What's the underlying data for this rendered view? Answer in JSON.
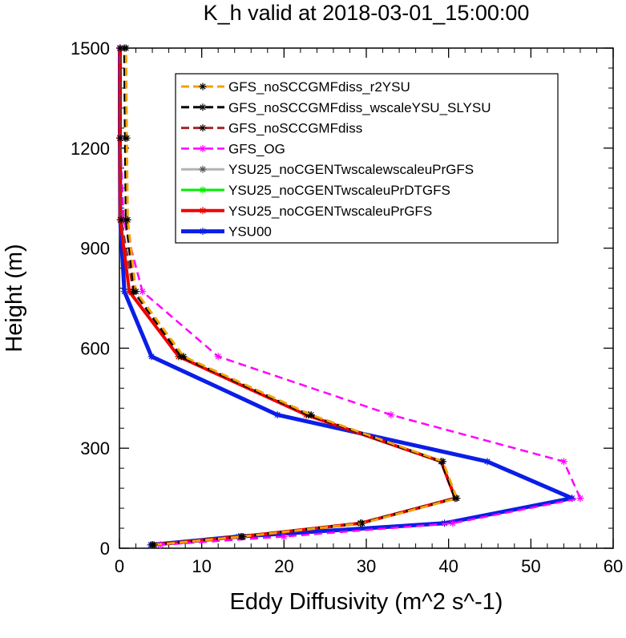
{
  "chart_data": {
    "type": "line",
    "title": "K_h valid at 2018-03-01_15:00:00",
    "xlabel": "Eddy Diffusivity (m^2 s^-1)",
    "ylabel": "Height (m)",
    "xlim": [
      0,
      60
    ],
    "ylim": [
      0,
      1500
    ],
    "x_ticks": [
      0,
      10,
      20,
      30,
      40,
      50,
      60
    ],
    "y_ticks": [
      0,
      300,
      600,
      900,
      1200,
      1500
    ],
    "x_tick_labels": [
      "0",
      "10",
      "20",
      "30",
      "40",
      "50",
      "60"
    ],
    "y_tick_labels": [
      "0",
      "300",
      "600",
      "900",
      "1200",
      "1500"
    ],
    "legend_position": "top-right",
    "grid": false,
    "heights": [
      10,
      35,
      75,
      150,
      260,
      400,
      575,
      770,
      985,
      1230,
      1500
    ],
    "series": [
      {
        "name": "GFS_noSCCGMFdiss_r2YSU",
        "color": "#f5a000",
        "width": 3,
        "dash": "10,6",
        "markers": true,
        "x": [
          4.2,
          15.0,
          29.5,
          41.0,
          39.3,
          23.3,
          7.8,
          2.0,
          1.0,
          0.9,
          0.8
        ]
      },
      {
        "name": "GFS_noSCCGMFdiss_wscaleYSU_SLYSU",
        "color": "#000000",
        "width": 3,
        "dash": "10,6",
        "markers": true,
        "x": [
          4.0,
          14.8,
          29.3,
          40.8,
          39.1,
          23.0,
          7.5,
          1.8,
          0.8,
          0.7,
          0.6
        ]
      },
      {
        "name": "GFS_noSCCGMFdiss",
        "color": "#a52a2a",
        "width": 3,
        "dash": "10,6",
        "markers": true,
        "x": [
          4.0,
          14.8,
          29.3,
          40.8,
          39.1,
          23.0,
          7.5,
          1.7,
          0.2,
          0.1,
          0.1
        ]
      },
      {
        "name": "GFS_OG",
        "color": "#ff00ff",
        "width": 2.5,
        "dash": "10,6",
        "markers": true,
        "x": [
          5.0,
          20.0,
          40.5,
          56.0,
          54.0,
          33.0,
          12.0,
          2.8,
          0.5,
          0.1,
          0.05
        ]
      },
      {
        "name": "YSU25_noCGENTwscalewscaleuPrGFS",
        "color": "#b4b4b4",
        "width": 3,
        "dash": "",
        "markers": true,
        "x": [
          4.0,
          14.8,
          29.3,
          40.8,
          39.1,
          22.7,
          7.2,
          1.2,
          0.1,
          0.05,
          0.05
        ]
      },
      {
        "name": "YSU25_noCGENTwscaleuPrDTGFS",
        "color": "#00ee00",
        "width": 3,
        "dash": "",
        "markers": true,
        "x": [
          4.0,
          14.8,
          29.3,
          40.8,
          39.1,
          22.7,
          7.2,
          1.2,
          0.1,
          0.05,
          0.05
        ]
      },
      {
        "name": "YSU25_noCGENTwscaleuPrGFS",
        "color": "#ee0000",
        "width": 4,
        "dash": "",
        "markers": true,
        "x": [
          4.0,
          14.8,
          29.3,
          40.8,
          39.1,
          22.7,
          7.2,
          1.2,
          0.1,
          0.05,
          0.05
        ]
      },
      {
        "name": "YSU00",
        "color": "#0a1ee6",
        "width": 5,
        "dash": "",
        "markers": true,
        "x": [
          3.8,
          14.5,
          39.5,
          55.0,
          44.7,
          19.2,
          3.9,
          0.6,
          0.1,
          0.05,
          0.05
        ]
      }
    ]
  }
}
